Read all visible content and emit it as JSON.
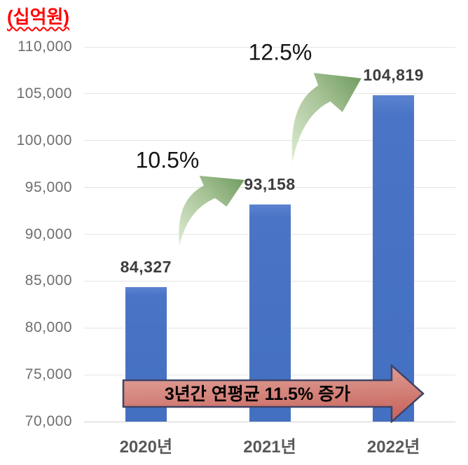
{
  "unit_label": "(십억원)",
  "chart_data": {
    "type": "bar",
    "title": "(십억원)",
    "categories": [
      "2020년",
      "2021년",
      "2022년"
    ],
    "values": [
      84327,
      93158,
      104819
    ],
    "value_labels": [
      "84,327",
      "93,158",
      "104,819"
    ],
    "ylim": [
      70000,
      110000
    ],
    "ytick_interval": 5000,
    "ytick_labels": [
      "110,000",
      "105,000",
      "100,000",
      "95,000",
      "90,000",
      "85,000",
      "80,000",
      "75,000",
      "70,000"
    ],
    "grid": true,
    "legend": false,
    "annotations": [
      {
        "type": "growth-arrow",
        "label": "10.5%",
        "between": [
          "2020년",
          "2021년"
        ]
      },
      {
        "type": "growth-arrow",
        "label": "12.5%",
        "between": [
          "2021년",
          "2022년"
        ]
      },
      {
        "type": "banner-arrow",
        "label": "3년간 연평균 11.5% 증가"
      }
    ]
  },
  "colors": {
    "bar": "#4a74c6",
    "grid": "#e4e4e4",
    "axis_text": "#6e6e6e",
    "category_text": "#595959",
    "value_text": "#3d3d3d",
    "percent_text": "#141414",
    "unit_text": "#ff0000",
    "green_arrow_light": "#dcebd2",
    "green_arrow_mid": "#a9c498",
    "green_arrow_dark": "#6e9a5d",
    "banner_fill_light": "#e4aaa1",
    "banner_fill_dark": "#c96961",
    "banner_border": "#3f4366"
  }
}
